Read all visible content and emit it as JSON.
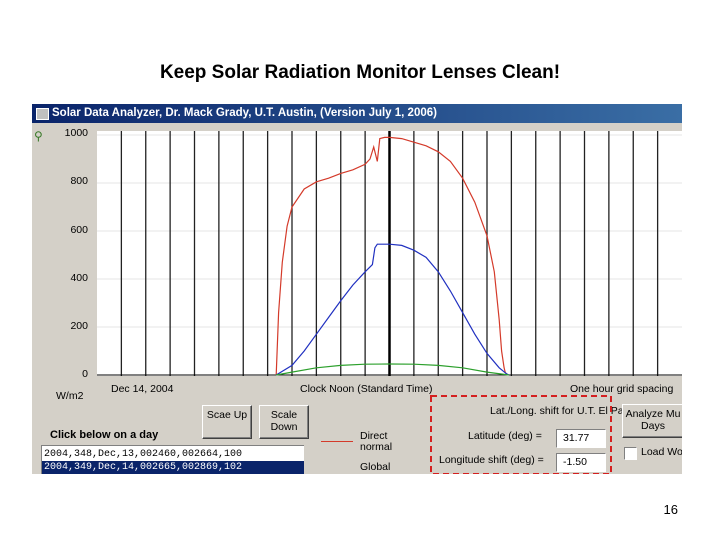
{
  "slide": {
    "title": "Keep Solar Radiation Monitor Lenses Clean!",
    "page_number": "16"
  },
  "window": {
    "title": "Solar Data Analyzer, Dr. Mack Grady, U.T. Austin, (Version July 1, 2006)"
  },
  "chart": {
    "y_ticks": [
      "1000",
      "800",
      "600",
      "400",
      "200",
      "0"
    ],
    "unit_label": "W/m2",
    "date_label": "Dec 14, 2004",
    "center_label": "Clock Noon (Standard Time)",
    "grid_label": "One hour grid spacing"
  },
  "chart_data": {
    "type": "line",
    "ylim": [
      0,
      1000
    ],
    "xlim": [
      0,
      24
    ],
    "grid": true,
    "vertical_gridlines_hours": [
      1,
      2,
      3,
      4,
      5,
      6,
      7,
      8,
      9,
      10,
      11,
      12,
      13,
      14,
      15,
      16,
      17,
      18,
      19,
      20,
      21,
      22,
      23
    ],
    "series": [
      {
        "name": "Direct normal",
        "color": "#d43a2a",
        "x": [
          7.35,
          7.45,
          7.6,
          7.8,
          8.0,
          8.5,
          9.0,
          9.5,
          10.0,
          10.5,
          11.0,
          11.2,
          11.35,
          11.5,
          11.6,
          11.8,
          12.0,
          12.5,
          13.0,
          13.5,
          14.0,
          14.5,
          15.0,
          15.5,
          16.0,
          16.3,
          16.5,
          16.6,
          16.7,
          16.75,
          16.85
        ],
        "y": [
          0,
          260,
          470,
          620,
          700,
          775,
          805,
          820,
          840,
          855,
          878,
          900,
          950,
          890,
          985,
          990,
          990,
          985,
          970,
          955,
          930,
          890,
          820,
          720,
          580,
          430,
          230,
          100,
          30,
          10,
          0
        ]
      },
      {
        "name": "Global",
        "color": "#2030c0",
        "x": [
          7.35,
          8.0,
          8.5,
          9.0,
          9.5,
          10.0,
          10.5,
          11.0,
          11.3,
          11.4,
          11.5,
          12.0,
          12.5,
          13.0,
          13.5,
          14.0,
          14.5,
          15.0,
          15.5,
          16.0,
          16.5,
          16.8,
          16.9
        ],
        "y": [
          0,
          40,
          100,
          170,
          240,
          310,
          375,
          430,
          460,
          530,
          545,
          545,
          540,
          520,
          490,
          430,
          350,
          260,
          170,
          90,
          30,
          5,
          0
        ]
      },
      {
        "name": "",
        "color": "#2ca02c",
        "x": [
          7.35,
          8.0,
          9.0,
          10.0,
          11.0,
          12.0,
          13.0,
          14.0,
          15.0,
          16.0,
          16.9
        ],
        "y": [
          0,
          12,
          30,
          40,
          45,
          46,
          45,
          40,
          30,
          12,
          0
        ]
      }
    ]
  },
  "controls": {
    "scale_up": "Scae Up",
    "scale_down": "Scale Down",
    "click_below": "Click below on a day",
    "day_list": [
      "2004,348,Dec,13,002460,002664,100",
      "2004,349,Dec,14,002665,002869,102"
    ],
    "legend_direct": "Direct normal",
    "legend_global": "Global",
    "latlong_title": "Lat./Long. shift for U.T. El Paso",
    "latitude_label": "Latitude (deg) =",
    "latitude_value": "31.77",
    "longitude_label": "Longitude shift (deg) =",
    "longitude_value": "-1.50",
    "analyze_button": "Analyze Mu Days",
    "load_label": "Load Wo"
  },
  "colors": {
    "highlight_box": "#d42020",
    "titlebar": "#0a246a"
  }
}
